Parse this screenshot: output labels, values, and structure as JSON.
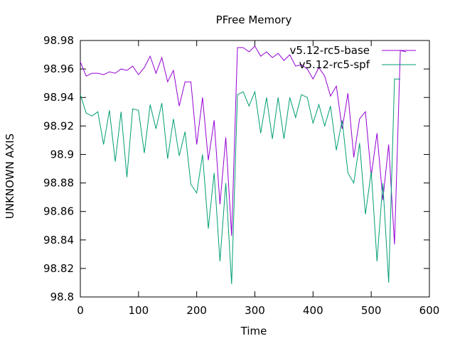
{
  "chart_data": {
    "type": "line",
    "title": "PFree Memory",
    "xlabel": "Time",
    "ylabel": "UNKNOWN AXIS",
    "xlim": [
      0,
      600
    ],
    "ylim": [
      98.8,
      98.98
    ],
    "xticks": [
      0,
      100,
      200,
      300,
      400,
      500,
      600
    ],
    "yticks": [
      98.8,
      98.82,
      98.84,
      98.86,
      98.88,
      98.9,
      98.92,
      98.94,
      98.96,
      98.98
    ],
    "legend_position": "top-right",
    "grid": false,
    "series": [
      {
        "name": "v5.12-rc5-base",
        "color": "#9400d3",
        "points": [
          [
            0,
            98.965
          ],
          [
            10,
            98.955
          ],
          [
            20,
            98.957
          ],
          [
            30,
            98.957
          ],
          [
            40,
            98.956
          ],
          [
            50,
            98.958
          ],
          [
            60,
            98.957
          ],
          [
            70,
            98.96
          ],
          [
            80,
            98.959
          ],
          [
            90,
            98.962
          ],
          [
            100,
            98.956
          ],
          [
            110,
            98.961
          ],
          [
            120,
            98.969
          ],
          [
            130,
            98.957
          ],
          [
            140,
            98.968
          ],
          [
            150,
            98.951
          ],
          [
            160,
            98.959
          ],
          [
            170,
            98.934
          ],
          [
            180,
            98.951
          ],
          [
            190,
            98.951
          ],
          [
            200,
            98.907
          ],
          [
            210,
            98.94
          ],
          [
            220,
            98.896
          ],
          [
            230,
            98.924
          ],
          [
            240,
            98.865
          ],
          [
            250,
            98.912
          ],
          [
            260,
            98.843
          ],
          [
            270,
            98.975
          ],
          [
            280,
            98.975
          ],
          [
            290,
            98.972
          ],
          [
            300,
            98.976
          ],
          [
            310,
            98.969
          ],
          [
            320,
            98.972
          ],
          [
            330,
            98.968
          ],
          [
            340,
            98.971
          ],
          [
            350,
            98.966
          ],
          [
            360,
            98.97
          ],
          [
            370,
            98.962
          ],
          [
            380,
            98.963
          ],
          [
            390,
            98.96
          ],
          [
            400,
            98.953
          ],
          [
            410,
            98.961
          ],
          [
            420,
            98.955
          ],
          [
            430,
            98.941
          ],
          [
            440,
            98.948
          ],
          [
            450,
            98.918
          ],
          [
            460,
            98.943
          ],
          [
            470,
            98.898
          ],
          [
            480,
            98.925
          ],
          [
            490,
            98.93
          ],
          [
            500,
            98.885
          ],
          [
            510,
            98.915
          ],
          [
            520,
            98.868
          ],
          [
            530,
            98.907
          ],
          [
            540,
            98.837
          ],
          [
            550,
            98.973
          ],
          [
            560,
            98.972
          ]
        ]
      },
      {
        "name": "v5.12-rc5-spf",
        "color": "#009e73",
        "points": [
          [
            0,
            98.942
          ],
          [
            10,
            98.929
          ],
          [
            20,
            98.927
          ],
          [
            30,
            98.93
          ],
          [
            40,
            98.907
          ],
          [
            50,
            98.931
          ],
          [
            60,
            98.895
          ],
          [
            70,
            98.93
          ],
          [
            80,
            98.884
          ],
          [
            90,
            98.932
          ],
          [
            100,
            98.931
          ],
          [
            110,
            98.901
          ],
          [
            120,
            98.935
          ],
          [
            130,
            98.918
          ],
          [
            140,
            98.936
          ],
          [
            150,
            98.897
          ],
          [
            160,
            98.925
          ],
          [
            170,
            98.899
          ],
          [
            180,
            98.916
          ],
          [
            190,
            98.879
          ],
          [
            200,
            98.873
          ],
          [
            210,
            98.9
          ],
          [
            220,
            98.848
          ],
          [
            230,
            98.887
          ],
          [
            240,
            98.825
          ],
          [
            250,
            98.88
          ],
          [
            260,
            98.809
          ],
          [
            270,
            98.942
          ],
          [
            280,
            98.944
          ],
          [
            290,
            98.934
          ],
          [
            300,
            98.944
          ],
          [
            310,
            98.915
          ],
          [
            320,
            98.94
          ],
          [
            330,
            98.911
          ],
          [
            340,
            98.94
          ],
          [
            350,
            98.911
          ],
          [
            360,
            98.94
          ],
          [
            370,
            98.926
          ],
          [
            380,
            98.942
          ],
          [
            390,
            98.94
          ],
          [
            400,
            98.922
          ],
          [
            410,
            98.935
          ],
          [
            420,
            98.92
          ],
          [
            430,
            98.934
          ],
          [
            440,
            98.903
          ],
          [
            450,
            98.924
          ],
          [
            460,
            98.887
          ],
          [
            470,
            98.88
          ],
          [
            480,
            98.908
          ],
          [
            490,
            98.858
          ],
          [
            500,
            98.888
          ],
          [
            510,
            98.825
          ],
          [
            520,
            98.88
          ],
          [
            530,
            98.81
          ],
          [
            540,
            98.953
          ],
          [
            550,
            98.953
          ]
        ]
      }
    ]
  }
}
